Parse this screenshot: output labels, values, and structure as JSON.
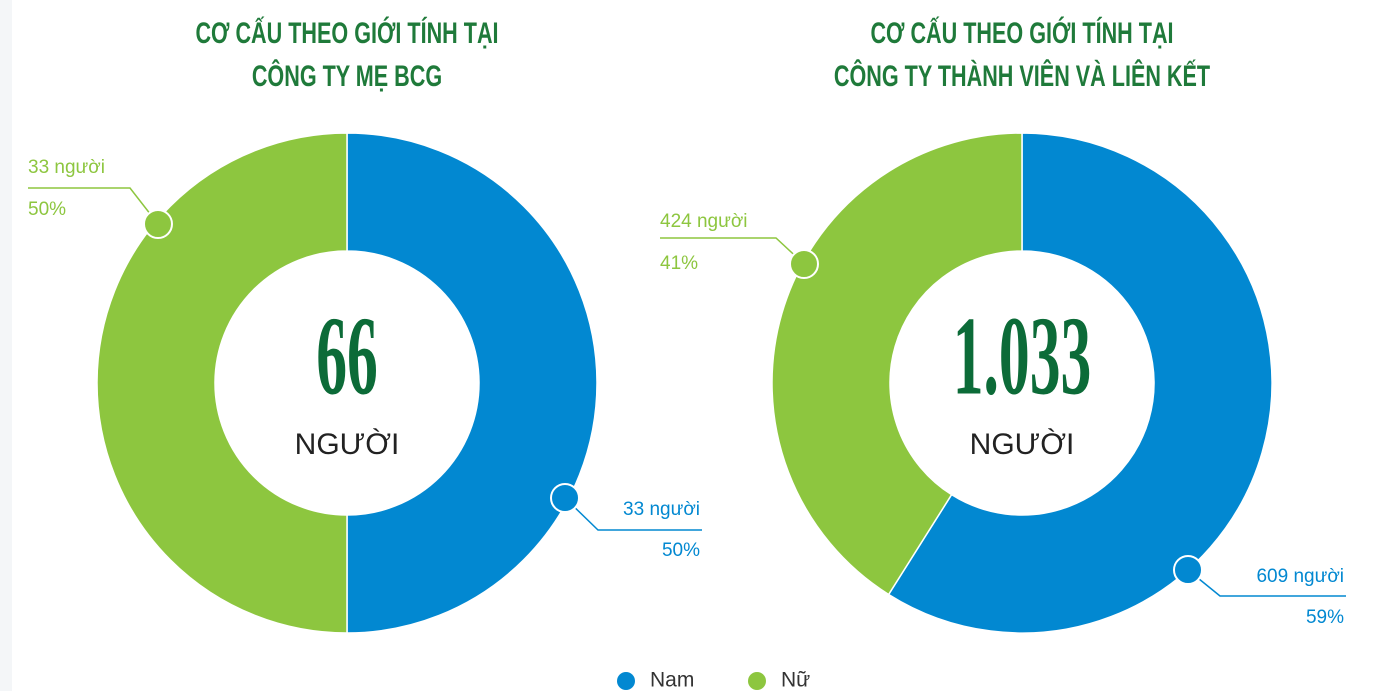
{
  "legend": {
    "items": [
      {
        "name": "Nam",
        "color": "#0288d1"
      },
      {
        "name": "Nữ",
        "color": "#8dc63f"
      }
    ]
  },
  "chart_data": [
    {
      "type": "donut",
      "title": [
        "CƠ CẤU THEO GIỚI TÍNH TẠI",
        "CÔNG TY MẸ BCG"
      ],
      "total": 66,
      "center_text": "NGƯỜI",
      "values": [
        33,
        33
      ],
      "value_labels": [
        "33 người",
        "33 người"
      ],
      "percents": [
        50,
        50
      ],
      "percent_labels": [
        "50%",
        "50%"
      ]
    },
    {
      "type": "donut",
      "title": [
        "CƠ CẤU THEO GIỚI TÍNH TẠI",
        "CÔNG TY THÀNH VIÊN VÀ LIÊN KẾT"
      ],
      "total": 1033,
      "total_label": "1.033",
      "center_text": "NGƯỜI",
      "values": [
        609,
        424
      ],
      "value_labels": [
        "609 người",
        "424 người"
      ],
      "percents": [
        59,
        41
      ],
      "percent_labels": [
        "59%",
        "41%"
      ]
    }
  ]
}
